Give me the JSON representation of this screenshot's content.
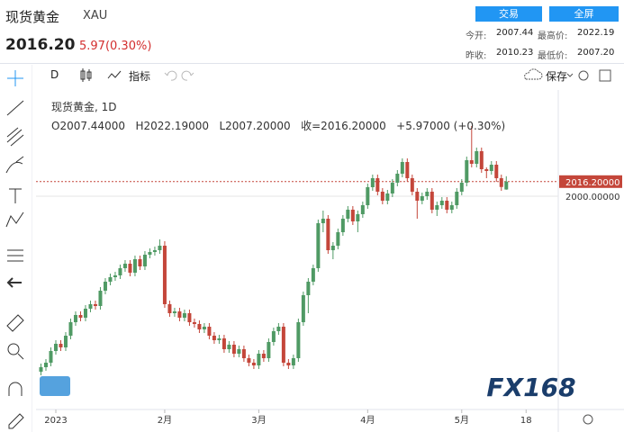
{
  "header": {
    "name": "现货黄金",
    "symbol": "XAU",
    "price": "2016.20",
    "change": "5.97(0.30%)",
    "trade_button": "交易",
    "fullscreen_button": "全屏",
    "stats": [
      {
        "label": "今开:",
        "value": "2007.44"
      },
      {
        "label": "最高价:",
        "value": "2022.19"
      },
      {
        "label": "昨收:",
        "value": "2010.23"
      },
      {
        "label": "最低价:",
        "value": "2007.20"
      }
    ]
  },
  "toolbar": {
    "interval": "D",
    "indicators": "指标",
    "save": "保存"
  },
  "legend": {
    "title": "现货黄金, 1D",
    "open": "O2007.44000",
    "high": "H2022.19000",
    "low": "L2007.20000",
    "close": "收=2016.20000",
    "change": "+5.97000 (+0.30%)"
  },
  "watermark": "FX168",
  "chart": {
    "type": "candlestick",
    "up_color": "#4f9a64",
    "down_color": "#c4463a",
    "xlim": [
      -1,
      104.5
    ],
    "xticks": [
      {
        "value": 3,
        "label": "2023"
      },
      {
        "value": 25,
        "label": "2月"
      },
      {
        "value": 44,
        "label": "3月"
      },
      {
        "value": 66,
        "label": "4月"
      },
      {
        "value": 85,
        "label": "5月"
      },
      {
        "value": 98,
        "label": "18"
      }
    ],
    "ylim": [
      1763,
      2118
    ],
    "yticks": [
      {
        "value": 2016.2,
        "label": "2016.20000"
      },
      {
        "value": 2000,
        "label": "2000.00000"
      }
    ],
    "candles": [
      [
        1805,
        1814,
        1801,
        1810
      ],
      [
        1810,
        1819,
        1806,
        1815
      ],
      [
        1815,
        1832,
        1811,
        1828
      ],
      [
        1828,
        1840,
        1824,
        1836
      ],
      [
        1836,
        1840,
        1828,
        1832
      ],
      [
        1832,
        1849,
        1828,
        1845
      ],
      [
        1845,
        1864,
        1841,
        1860
      ],
      [
        1860,
        1872,
        1856,
        1868
      ],
      [
        1868,
        1872,
        1861,
        1865
      ],
      [
        1865,
        1879,
        1861,
        1875
      ],
      [
        1875,
        1884,
        1871,
        1880
      ],
      [
        1880,
        1884,
        1874,
        1878
      ],
      [
        1878,
        1899,
        1874,
        1895
      ],
      [
        1895,
        1909,
        1891,
        1905
      ],
      [
        1905,
        1914,
        1901,
        1910
      ],
      [
        1910,
        1916,
        1906,
        1912
      ],
      [
        1912,
        1924,
        1908,
        1920
      ],
      [
        1920,
        1929,
        1916,
        1925
      ],
      [
        1925,
        1929,
        1911,
        1915
      ],
      [
        1915,
        1934,
        1911,
        1930
      ],
      [
        1930,
        1934,
        1918,
        1922
      ],
      [
        1922,
        1939,
        1918,
        1935
      ],
      [
        1935,
        1942,
        1931,
        1938
      ],
      [
        1938,
        1944,
        1934,
        1940
      ],
      [
        1940,
        1952,
        1936,
        1945
      ],
      [
        1945,
        1950,
        1876,
        1880
      ],
      [
        1880,
        1884,
        1866,
        1870
      ],
      [
        1870,
        1876,
        1866,
        1872
      ],
      [
        1872,
        1876,
        1861,
        1865
      ],
      [
        1865,
        1874,
        1861,
        1870
      ],
      [
        1870,
        1874,
        1856,
        1860
      ],
      [
        1860,
        1864,
        1854,
        1858
      ],
      [
        1858,
        1862,
        1848,
        1852
      ],
      [
        1852,
        1859,
        1848,
        1855
      ],
      [
        1855,
        1859,
        1841,
        1845
      ],
      [
        1845,
        1849,
        1836,
        1840
      ],
      [
        1840,
        1846,
        1836,
        1842
      ],
      [
        1842,
        1846,
        1826,
        1830
      ],
      [
        1830,
        1839,
        1826,
        1835
      ],
      [
        1835,
        1839,
        1821,
        1825
      ],
      [
        1825,
        1834,
        1821,
        1830
      ],
      [
        1830,
        1834,
        1816,
        1820
      ],
      [
        1820,
        1824,
        1811,
        1815
      ],
      [
        1815,
        1819,
        1808,
        1812
      ],
      [
        1812,
        1829,
        1808,
        1825
      ],
      [
        1825,
        1829,
        1816,
        1820
      ],
      [
        1820,
        1842,
        1816,
        1838
      ],
      [
        1838,
        1854,
        1834,
        1850
      ],
      [
        1850,
        1859,
        1846,
        1855
      ],
      [
        1855,
        1859,
        1811,
        1815
      ],
      [
        1815,
        1819,
        1808,
        1812
      ],
      [
        1812,
        1824,
        1808,
        1820
      ],
      [
        1820,
        1864,
        1816,
        1860
      ],
      [
        1860,
        1894,
        1856,
        1890
      ],
      [
        1890,
        1909,
        1870,
        1905
      ],
      [
        1905,
        1924,
        1901,
        1920
      ],
      [
        1920,
        1974,
        1916,
        1970
      ],
      [
        1970,
        1984,
        1960,
        1975
      ],
      [
        1975,
        1979,
        1936,
        1940
      ],
      [
        1940,
        1949,
        1930,
        1945
      ],
      [
        1945,
        1964,
        1941,
        1960
      ],
      [
        1960,
        1979,
        1956,
        1975
      ],
      [
        1975,
        1989,
        1971,
        1985
      ],
      [
        1985,
        1989,
        1968,
        1972
      ],
      [
        1972,
        1984,
        1960,
        1980
      ],
      [
        1980,
        1994,
        1976,
        1990
      ],
      [
        1990,
        2014,
        1986,
        2010
      ],
      [
        2010,
        2024,
        2006,
        2020
      ],
      [
        2020,
        2024,
        2001,
        2005
      ],
      [
        2005,
        2009,
        1991,
        1995
      ],
      [
        1995,
        2007,
        1991,
        2003
      ],
      [
        2003,
        2019,
        1999,
        2015
      ],
      [
        2015,
        2029,
        2011,
        2025
      ],
      [
        2025,
        2042,
        2021,
        2038
      ],
      [
        2038,
        2042,
        2016,
        2020
      ],
      [
        2020,
        2024,
        2001,
        2005
      ],
      [
        2005,
        2009,
        1975,
        1995
      ],
      [
        1995,
        2004,
        1991,
        2000
      ],
      [
        2000,
        2009,
        1996,
        2005
      ],
      [
        2005,
        2009,
        1981,
        1985
      ],
      [
        1985,
        1994,
        1978,
        1990
      ],
      [
        1990,
        1999,
        1986,
        1995
      ],
      [
        1995,
        1999,
        1981,
        1985
      ],
      [
        1985,
        1994,
        1981,
        1990
      ],
      [
        1990,
        2009,
        1986,
        2005
      ],
      [
        2005,
        2019,
        2001,
        2015
      ],
      [
        2015,
        2044,
        2011,
        2040
      ],
      [
        2040,
        2078,
        2032,
        2036
      ],
      [
        2036,
        2054,
        2032,
        2050
      ],
      [
        2050,
        2054,
        2026,
        2030
      ],
      [
        2030,
        2032,
        2020,
        2028
      ],
      [
        2028,
        2039,
        2024,
        2035
      ],
      [
        2035,
        2039,
        2016,
        2020
      ],
      [
        2020,
        2024,
        2006,
        2010.23
      ],
      [
        2007.44,
        2022.19,
        2007.2,
        2016.2
      ]
    ]
  }
}
